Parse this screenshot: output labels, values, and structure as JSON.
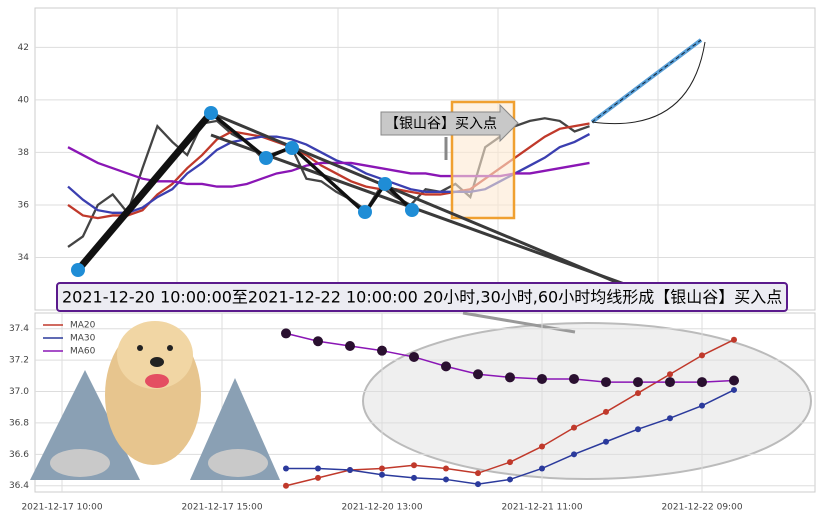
{
  "chart_data": [
    {
      "type": "line",
      "annotation": "【银山谷】买入点",
      "banner": "2021-12-20 10:00:00至2021-12-22 10:00:00 20小时,30小时,60小时均线形成【银山谷】买入点",
      "ylim": [
        32,
        43.5
      ],
      "yticks": [
        34,
        36,
        38,
        40,
        42
      ],
      "grid": true,
      "series": [
        {
          "color": "#444444",
          "values": [
            34.4,
            34.8,
            36.0,
            36.4,
            35.7,
            37.4,
            39.0,
            38.4,
            37.9,
            39.1,
            39.2,
            38.7,
            38.4,
            37.8,
            38.0,
            38.2,
            37.0,
            36.9,
            36.5,
            36.2,
            35.8,
            36.7,
            36.3,
            36.0,
            36.6,
            36.5,
            36.8,
            36.3,
            38.2,
            38.6,
            39.0,
            39.2,
            39.3,
            39.2,
            38.8,
            39.0
          ]
        },
        {
          "color": "#c0392b",
          "values": [
            36.0,
            35.6,
            35.5,
            35.6,
            35.6,
            35.8,
            36.4,
            36.8,
            37.4,
            37.9,
            38.5,
            38.8,
            38.7,
            38.6,
            38.4,
            38.2,
            37.9,
            37.5,
            37.2,
            36.9,
            36.7,
            36.6,
            36.6,
            36.5,
            36.4,
            36.4,
            36.5,
            36.6,
            37.0,
            37.4,
            37.8,
            38.2,
            38.6,
            38.9,
            39.0,
            39.1
          ]
        },
        {
          "color": "#3b3fb0",
          "values": [
            36.7,
            36.2,
            35.8,
            35.7,
            35.7,
            35.9,
            36.3,
            36.6,
            37.2,
            37.6,
            38.1,
            38.4,
            38.5,
            38.6,
            38.6,
            38.5,
            38.3,
            38.0,
            37.7,
            37.5,
            37.2,
            37.0,
            36.8,
            36.6,
            36.5,
            36.5,
            36.5,
            36.5,
            36.6,
            36.9,
            37.2,
            37.5,
            37.8,
            38.2,
            38.4,
            38.7
          ]
        },
        {
          "color": "#8a16b5",
          "values": [
            38.2,
            37.9,
            37.6,
            37.4,
            37.2,
            37.0,
            36.9,
            36.9,
            36.8,
            36.8,
            36.7,
            36.7,
            36.8,
            37.0,
            37.2,
            37.3,
            37.5,
            37.6,
            37.6,
            37.6,
            37.5,
            37.4,
            37.3,
            37.2,
            37.2,
            37.1,
            37.1,
            37.1,
            37.1,
            37.1,
            37.2,
            37.2,
            37.3,
            37.4,
            37.5,
            37.6
          ]
        }
      ]
    },
    {
      "type": "line",
      "categories": [
        "2021-12-17 10:00",
        null,
        null,
        null,
        null,
        "2021-12-17 15:00",
        null,
        null,
        null,
        null,
        "2021-12-20 13:00",
        null,
        null,
        null,
        null,
        "2021-12-21 11:00",
        null,
        null,
        null,
        null,
        "2021-12-22 09:00",
        null,
        null
      ],
      "ylim": [
        36.36,
        37.5
      ],
      "yticks": [
        36.4,
        36.6,
        36.8,
        {
          "value": 37,
          "label": "37.0"
        },
        37.2,
        37.4
      ],
      "grid": true,
      "series": [
        {
          "name": "MA20",
          "color": "#c0392b",
          "values": [
            null,
            null,
            null,
            null,
            null,
            null,
            null,
            36.4,
            36.45,
            36.5,
            36.51,
            36.53,
            36.51,
            36.48,
            36.55,
            36.65,
            36.77,
            36.87,
            36.99,
            37.11,
            37.23,
            37.33,
            null
          ]
        },
        {
          "name": "MA30",
          "color": "#2b3a9c",
          "values": [
            null,
            null,
            null,
            null,
            null,
            null,
            null,
            36.51,
            36.51,
            36.5,
            36.47,
            36.45,
            36.44,
            36.41,
            36.44,
            36.51,
            36.6,
            36.68,
            36.76,
            36.83,
            36.91,
            37.01,
            null
          ]
        },
        {
          "name": "MA60",
          "color": "#8a16b5",
          "values": [
            null,
            null,
            null,
            null,
            null,
            null,
            null,
            37.37,
            37.32,
            37.29,
            37.26,
            37.22,
            37.16,
            37.11,
            37.09,
            37.08,
            37.08,
            37.06,
            37.06,
            37.06,
            37.06,
            37.07,
            null
          ]
        }
      ]
    }
  ]
}
